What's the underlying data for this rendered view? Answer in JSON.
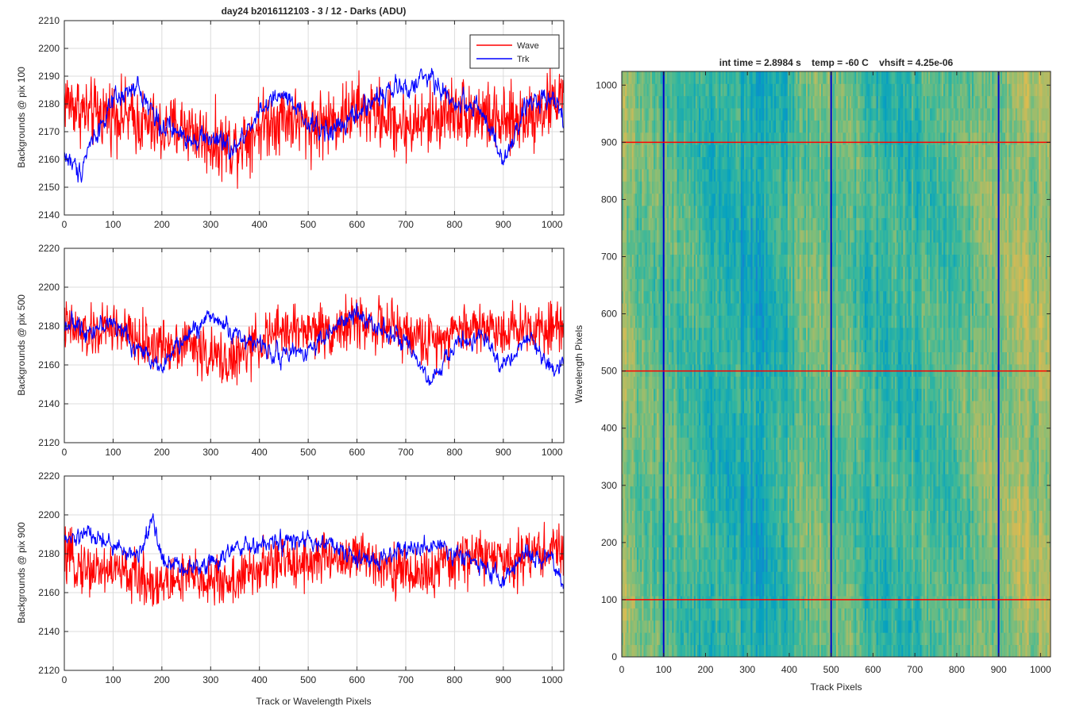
{
  "figure": {
    "background": "#ffffff"
  },
  "chart_data": [
    {
      "type": "line",
      "title": "day24 b2016112103 - 3 / 12 - Darks (ADU)",
      "xlabel": "",
      "ylabel": "Backgrounds @ pix 100",
      "xlim": [
        0,
        1024
      ],
      "ylim": [
        2140,
        2210
      ],
      "xticks": [
        0,
        100,
        200,
        300,
        400,
        500,
        600,
        700,
        800,
        900,
        1000
      ],
      "yticks": [
        2140,
        2150,
        2160,
        2170,
        2180,
        2190,
        2200,
        2210
      ],
      "grid": true,
      "legend": {
        "position": "top-right",
        "entries": [
          "Wave",
          "Trk"
        ]
      },
      "series": [
        {
          "name": "Wave",
          "color": "#ff0000",
          "x": [
            0,
            50,
            100,
            150,
            200,
            250,
            300,
            350,
            400,
            450,
            500,
            550,
            600,
            650,
            700,
            750,
            800,
            850,
            900,
            950,
            1000,
            1023
          ],
          "values": [
            2182,
            2176,
            2177,
            2174,
            2170,
            2172,
            2166,
            2165,
            2172,
            2176,
            2172,
            2174,
            2178,
            2176,
            2172,
            2174,
            2178,
            2177,
            2172,
            2176,
            2180,
            2185
          ],
          "noise": 11
        },
        {
          "name": "Trk",
          "color": "#0000ff",
          "x": [
            0,
            30,
            50,
            80,
            100,
            150,
            200,
            250,
            300,
            350,
            400,
            450,
            500,
            550,
            600,
            650,
            700,
            750,
            800,
            850,
            900,
            950,
            1000,
            1023
          ],
          "values": [
            2162,
            2155,
            2165,
            2174,
            2180,
            2186,
            2172,
            2168,
            2168,
            2163,
            2178,
            2183,
            2172,
            2170,
            2176,
            2184,
            2186,
            2190,
            2180,
            2180,
            2158,
            2180,
            2184,
            2175
          ],
          "noise": 4
        }
      ]
    },
    {
      "type": "line",
      "title": "",
      "xlabel": "",
      "ylabel": "Backgrounds @ pix 500",
      "xlim": [
        0,
        1024
      ],
      "ylim": [
        2120,
        2220
      ],
      "xticks": [
        0,
        100,
        200,
        300,
        400,
        500,
        600,
        700,
        800,
        900,
        1000
      ],
      "yticks": [
        2120,
        2140,
        2160,
        2180,
        2200,
        2220
      ],
      "grid": true,
      "series": [
        {
          "name": "Wave",
          "color": "#ff0000",
          "x": [
            0,
            50,
            100,
            150,
            200,
            250,
            300,
            350,
            400,
            450,
            500,
            550,
            600,
            650,
            700,
            750,
            800,
            850,
            900,
            950,
            1000,
            1023
          ],
          "values": [
            2180,
            2175,
            2180,
            2172,
            2170,
            2172,
            2164,
            2162,
            2172,
            2178,
            2178,
            2178,
            2182,
            2180,
            2176,
            2172,
            2178,
            2180,
            2178,
            2180,
            2180,
            2182
          ],
          "noise": 12
        },
        {
          "name": "Trk",
          "color": "#0000ff",
          "x": [
            0,
            50,
            100,
            150,
            200,
            250,
            300,
            350,
            400,
            450,
            500,
            550,
            600,
            650,
            700,
            750,
            800,
            850,
            900,
            950,
            1000,
            1023
          ],
          "values": [
            2182,
            2178,
            2182,
            2168,
            2160,
            2174,
            2186,
            2176,
            2170,
            2165,
            2168,
            2178,
            2186,
            2180,
            2170,
            2150,
            2170,
            2175,
            2160,
            2174,
            2158,
            2162
          ],
          "noise": 5
        }
      ]
    },
    {
      "type": "line",
      "title": "",
      "xlabel": "Track or Wavelength Pixels",
      "ylabel": "Backgrounds @ pix 900",
      "xlim": [
        0,
        1024
      ],
      "ylim": [
        2120,
        2220
      ],
      "xticks": [
        0,
        100,
        200,
        300,
        400,
        500,
        600,
        700,
        800,
        900,
        1000
      ],
      "yticks": [
        2120,
        2140,
        2160,
        2180,
        2200,
        2220
      ],
      "grid": true,
      "series": [
        {
          "name": "Wave",
          "color": "#ff0000",
          "x": [
            0,
            50,
            100,
            150,
            200,
            250,
            300,
            350,
            400,
            450,
            500,
            550,
            600,
            650,
            700,
            750,
            800,
            850,
            900,
            950,
            1000,
            1023
          ],
          "values": [
            2178,
            2172,
            2172,
            2168,
            2164,
            2168,
            2166,
            2166,
            2172,
            2176,
            2176,
            2178,
            2178,
            2176,
            2170,
            2170,
            2176,
            2180,
            2176,
            2180,
            2182,
            2182
          ],
          "noise": 12
        },
        {
          "name": "Trk",
          "color": "#0000ff",
          "x": [
            0,
            50,
            100,
            150,
            180,
            200,
            250,
            300,
            350,
            400,
            450,
            500,
            550,
            600,
            650,
            700,
            750,
            800,
            850,
            900,
            950,
            1000,
            1023
          ],
          "values": [
            2186,
            2190,
            2184,
            2178,
            2198,
            2178,
            2172,
            2176,
            2182,
            2184,
            2186,
            2186,
            2184,
            2176,
            2178,
            2182,
            2184,
            2180,
            2176,
            2166,
            2180,
            2176,
            2164
          ],
          "noise": 5
        }
      ]
    },
    {
      "type": "heatmap",
      "title": "int time = 2.8984 s    temp = -60 C    vhsift = 4.25e-06",
      "xlabel": "Track Pixels",
      "ylabel": "Wavelength Pixels",
      "xlim": [
        0,
        1024
      ],
      "ylim": [
        0,
        1024
      ],
      "xticks": [
        0,
        100,
        200,
        300,
        400,
        500,
        600,
        700,
        800,
        900,
        1000
      ],
      "yticks": [
        0,
        100,
        200,
        300,
        400,
        500,
        600,
        700,
        800,
        900,
        1000
      ],
      "colormap": "parula",
      "column_profile": {
        "x": [
          0,
          60,
          120,
          180,
          240,
          290,
          330,
          360,
          390,
          420,
          460,
          500,
          560,
          620,
          680,
          740,
          800,
          860,
          920,
          980,
          1023
        ],
        "level": [
          0.62,
          0.58,
          0.54,
          0.5,
          0.45,
          0.42,
          0.41,
          0.42,
          0.48,
          0.56,
          0.6,
          0.58,
          0.52,
          0.48,
          0.5,
          0.52,
          0.56,
          0.6,
          0.64,
          0.66,
          0.66
        ]
      },
      "markers": {
        "vertical": {
          "color": "#0000cc",
          "x": [
            100,
            500,
            900
          ]
        },
        "horizontal": {
          "color": "#ff0000",
          "y": [
            100,
            500,
            900
          ]
        }
      }
    }
  ]
}
